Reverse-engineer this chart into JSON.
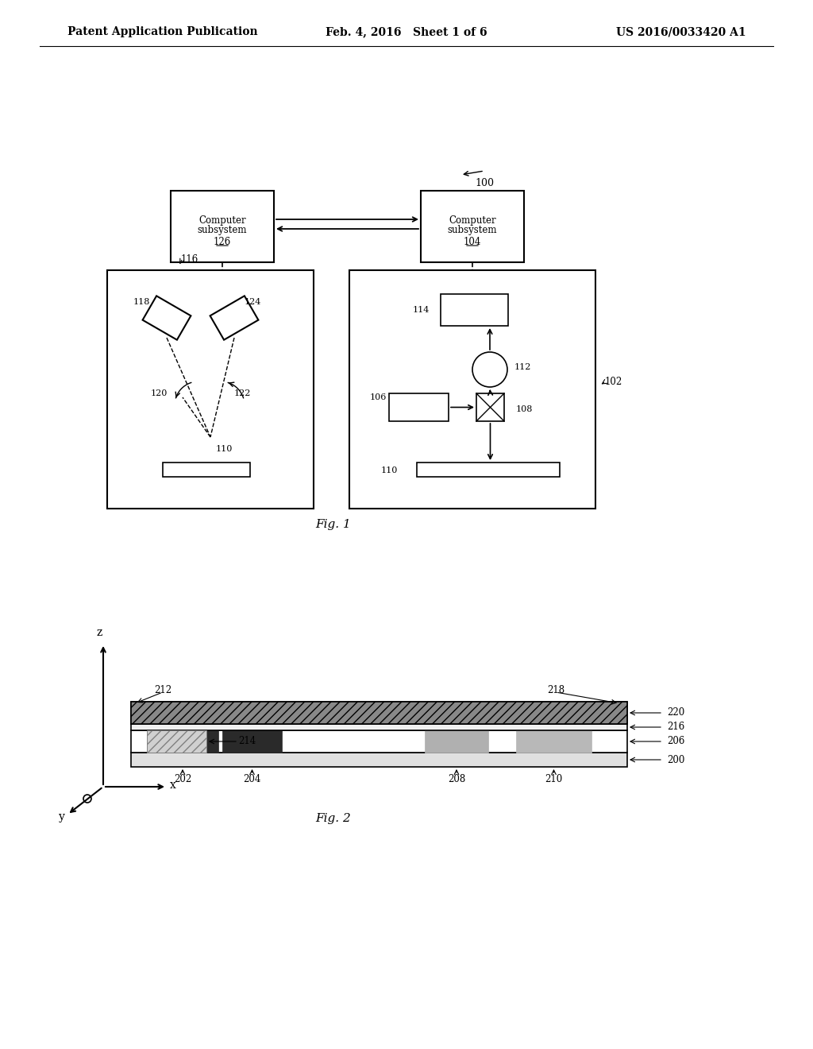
{
  "header_left": "Patent Application Publication",
  "header_middle": "Feb. 4, 2016   Sheet 1 of 6",
  "header_right": "US 2016/0033420 A1",
  "fig1_label": "Fig. 1",
  "fig2_label": "Fig. 2",
  "bg_color": "#ffffff",
  "text_color": "#000000",
  "box_color": "#000000",
  "label_100": "100",
  "label_102": "102",
  "label_104": "104",
  "label_106": "106",
  "label_108": "108",
  "label_110": "110",
  "label_112": "112",
  "label_114": "114",
  "label_116": "116",
  "label_118": "118",
  "label_120": "120",
  "label_122": "122",
  "label_124": "124",
  "label_126": "126",
  "label_200": "200",
  "label_202": "202",
  "label_204": "204",
  "label_206": "206",
  "label_208": "208",
  "label_210": "210",
  "label_212": "212",
  "label_214": "214",
  "label_216": "216",
  "label_218": "218",
  "label_220": "220",
  "cs126_text": "Computer\nsubsystem\n126",
  "cs104_text": "Computer\nsubsystem\n104"
}
